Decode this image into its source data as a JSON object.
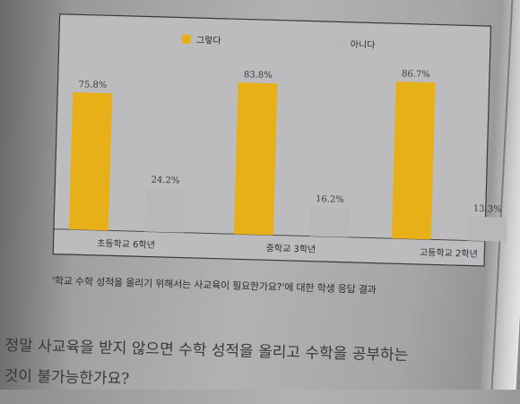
{
  "chart_data": {
    "type": "bar",
    "categories": [
      "초등학교 6학년",
      "중학교 3학년",
      "고등학교 2학년"
    ],
    "series": [
      {
        "name": "그렇다",
        "values": [
          75.8,
          83.8,
          86.7
        ],
        "labels": [
          "75.8%",
          "83.8%",
          "86.7%"
        ]
      },
      {
        "name": "아니다",
        "values": [
          24.2,
          16.2,
          13.3
        ],
        "labels": [
          "24.2%",
          "16.2%",
          "13.3%"
        ]
      }
    ],
    "ylim": [
      0,
      100
    ],
    "grid": false,
    "legend": "top-center",
    "colors": [
      "#e7b019",
      "#b9b8b9"
    ]
  },
  "caption": "'학교 수학 성적을 올리기 위해서는 사교육이 필요한가요?'에 대한 학생 응답 결과",
  "body_text": [
    "정말 사교육을 받지 않으면 수학 성적을 올리고 수학을 공부하는",
    "것이 불가능한가요?"
  ]
}
